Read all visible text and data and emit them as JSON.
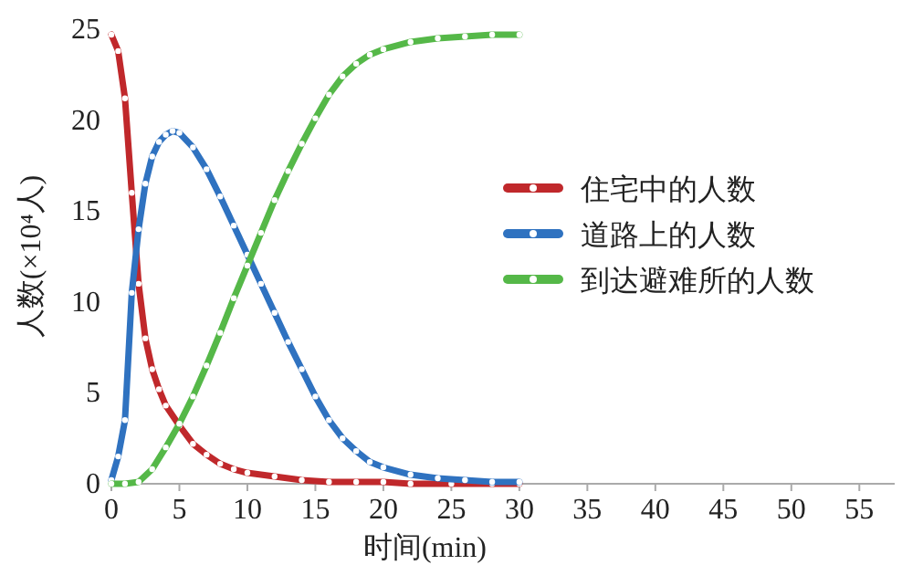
{
  "chart_data": {
    "type": "line",
    "xlabel": "时间(min)",
    "ylabel": "人数(×10⁴人)",
    "xlim": [
      0,
      57.6
    ],
    "xticks": [
      0,
      5,
      10,
      15,
      20,
      25,
      30,
      35,
      40,
      45,
      50,
      55
    ],
    "ylim": [
      0,
      25
    ],
    "yticks": [
      0,
      5,
      10,
      15,
      20,
      25
    ],
    "legend": "right",
    "marker": "circle",
    "line_style": "solid",
    "grid": false,
    "series": [
      {
        "name": "住宅中的人数",
        "color": "#c0282b",
        "x": [
          0,
          0.5,
          1,
          1.5,
          2,
          2.5,
          3,
          3.5,
          4,
          5,
          6,
          7,
          8,
          9,
          10,
          12,
          14,
          16,
          18,
          20,
          22,
          25,
          28,
          30
        ],
        "values": [
          24.7,
          23.8,
          21.2,
          16,
          11,
          8,
          6.3,
          5.2,
          4.3,
          3.2,
          2.2,
          1.6,
          1.1,
          0.8,
          0.6,
          0.4,
          0.2,
          0.1,
          0.1,
          0.1,
          0,
          0,
          0,
          0
        ]
      },
      {
        "name": "道路上的人数",
        "color": "#2f72c0",
        "x": [
          0,
          0.5,
          1,
          1.5,
          2,
          2.5,
          3,
          3.5,
          4,
          4.5,
          5,
          6,
          7,
          8,
          9,
          10,
          11,
          12,
          13,
          14,
          15,
          16,
          17,
          18,
          19,
          20,
          22,
          24,
          26,
          28,
          30
        ],
        "values": [
          0.2,
          1.5,
          3.5,
          10.5,
          14,
          16.5,
          18,
          18.8,
          19.2,
          19.4,
          19.3,
          18.5,
          17.3,
          15.8,
          14.2,
          12.6,
          11,
          9.4,
          7.8,
          6.3,
          4.8,
          3.5,
          2.5,
          1.8,
          1.2,
          0.9,
          0.5,
          0.3,
          0.2,
          0.1,
          0.1
        ]
      },
      {
        "name": "到达避难所的人数",
        "color": "#55b848",
        "x": [
          0,
          1,
          2,
          3,
          4,
          5,
          6,
          7,
          8,
          9,
          10,
          11,
          12,
          13,
          14,
          15,
          16,
          17,
          18,
          19,
          20,
          22,
          24,
          26,
          28,
          30
        ],
        "values": [
          0,
          0,
          0.1,
          0.8,
          2.0,
          3.3,
          4.8,
          6.5,
          8.3,
          10.2,
          12,
          13.8,
          15.6,
          17.2,
          18.7,
          20.1,
          21.4,
          22.4,
          23.1,
          23.6,
          23.9,
          24.3,
          24.5,
          24.6,
          24.7,
          24.7
        ]
      }
    ]
  }
}
